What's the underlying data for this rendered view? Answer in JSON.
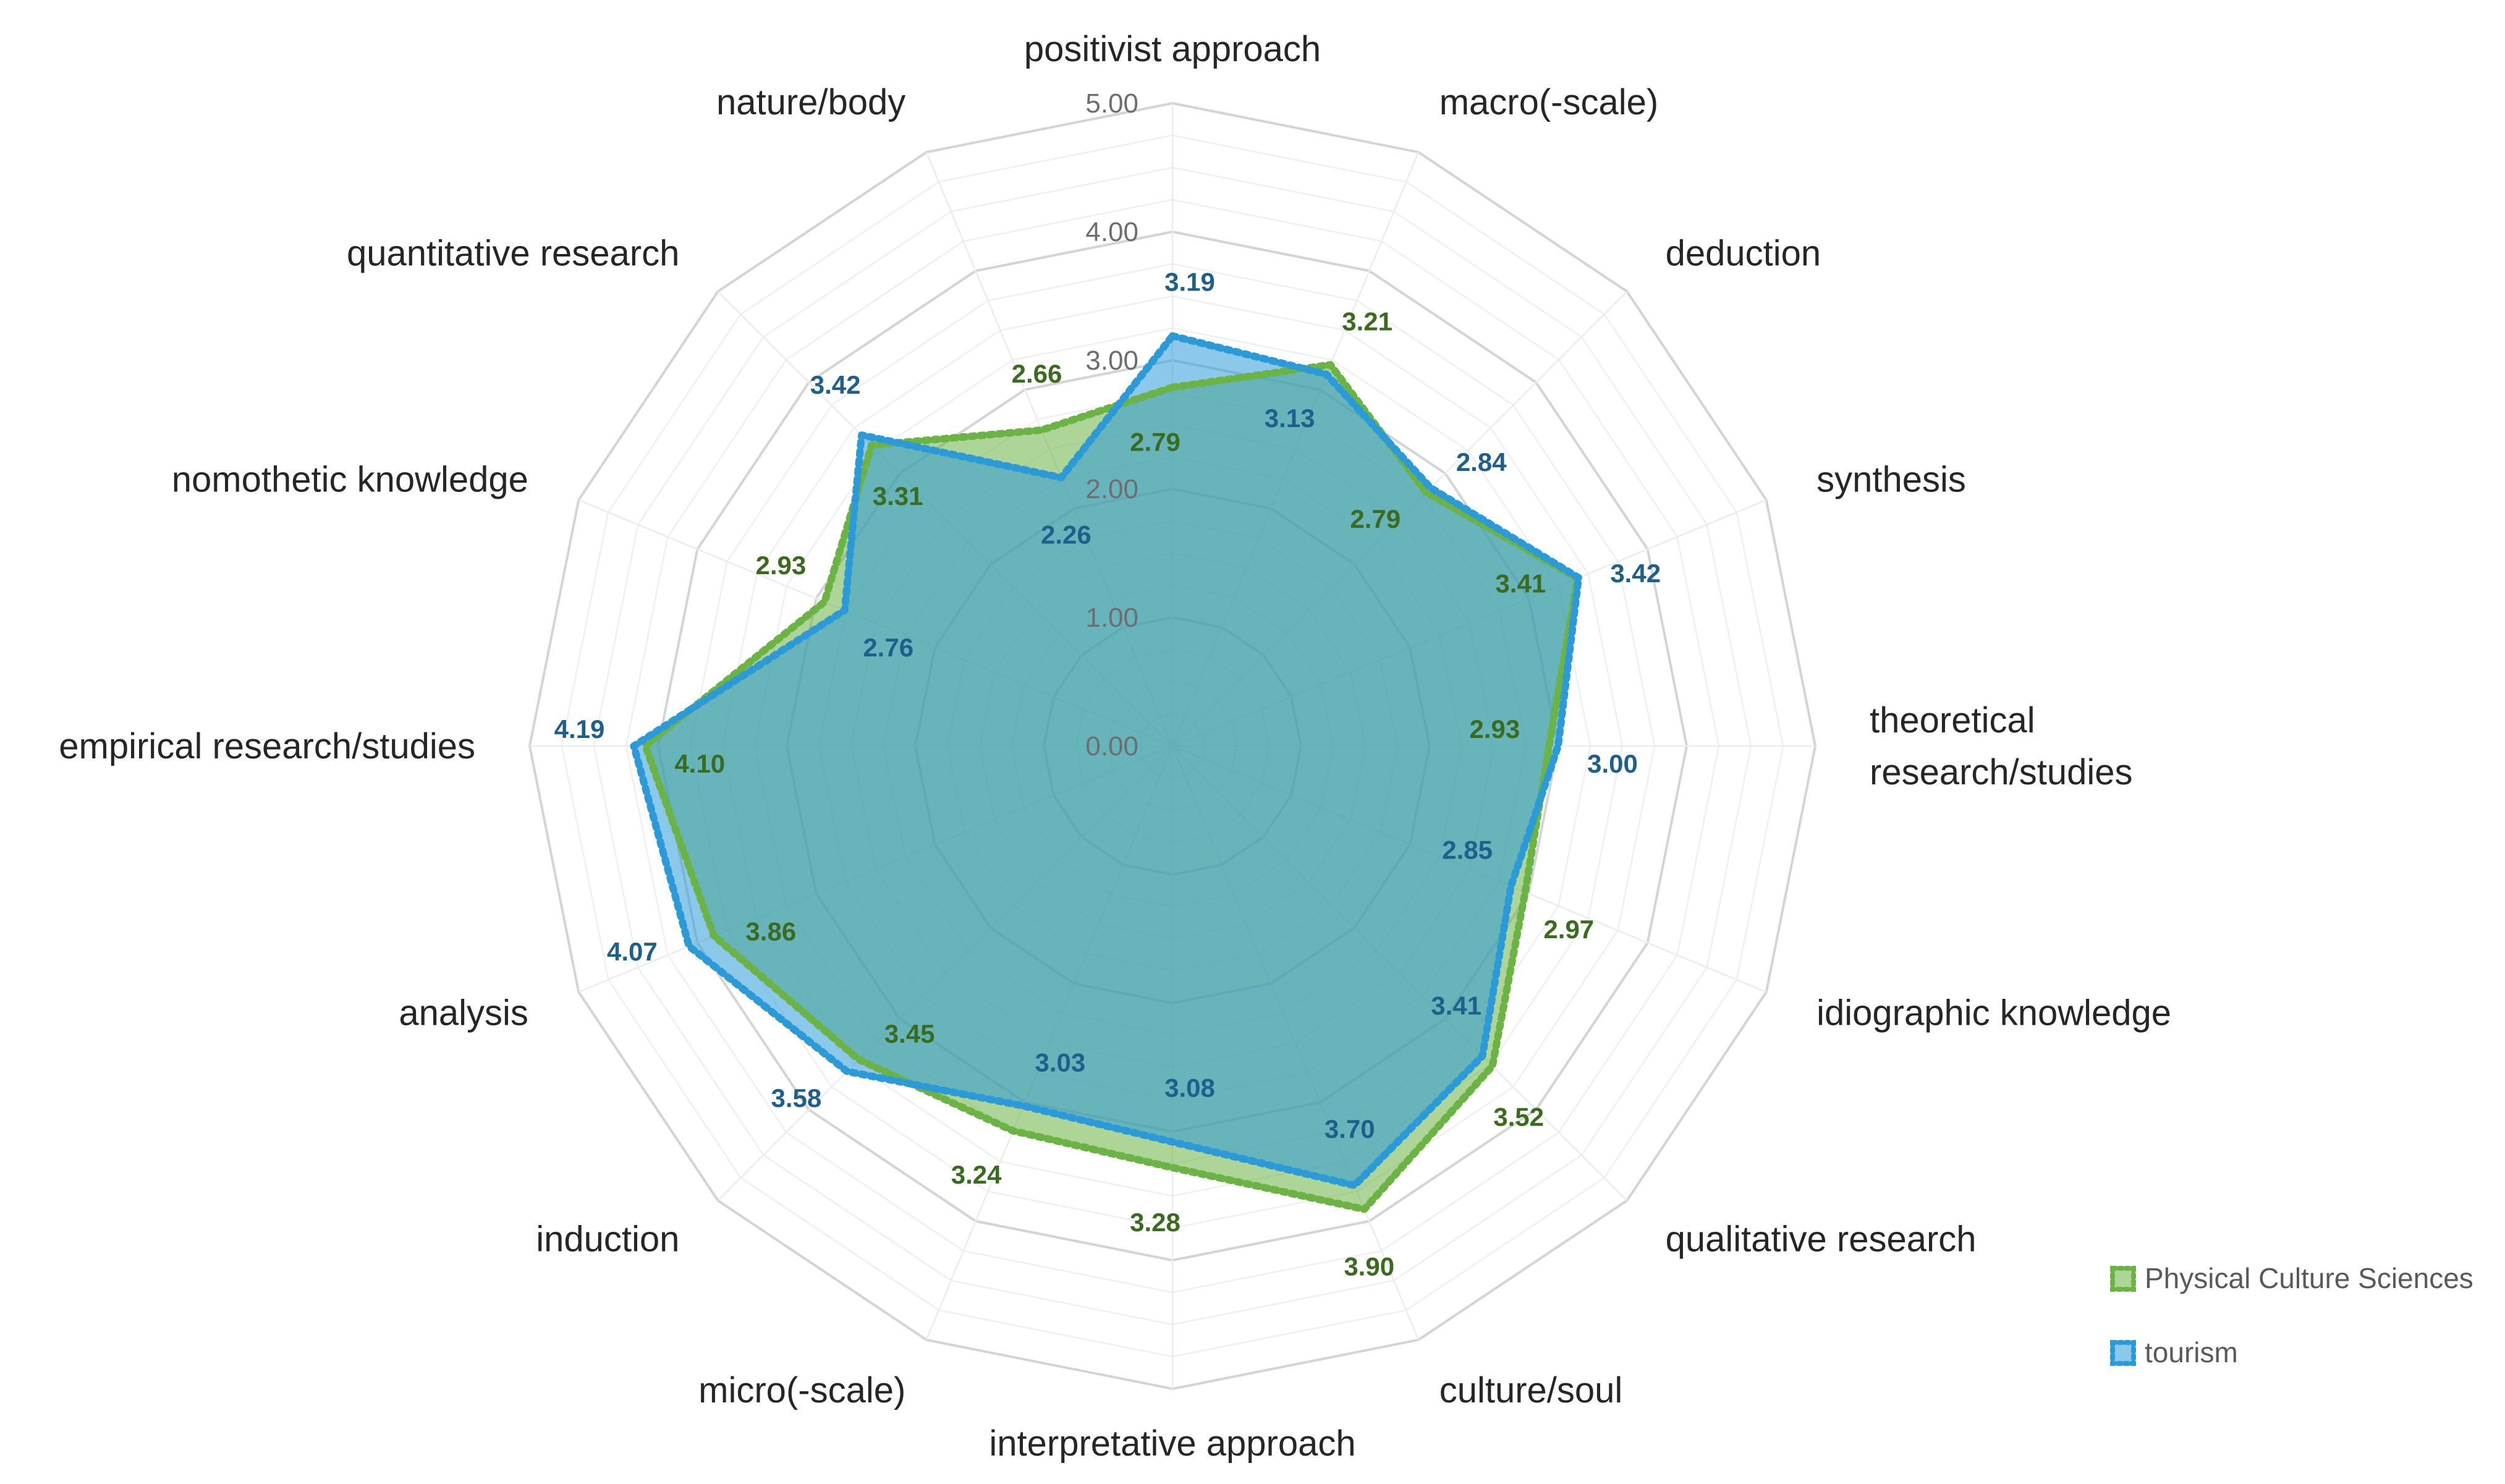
{
  "chart_data": {
    "type": "radar",
    "categories": [
      "positivist approach",
      "macro(-scale)",
      "deduction",
      "synthesis",
      "theoretical research/studies",
      "idiographic knowledge",
      "qualitative research",
      "culture/soul",
      "interpretative approach",
      "micro(-scale)",
      "induction",
      "analysis",
      "empirical research/studies",
      "nomothetic knowledge",
      "quantitative research",
      "nature/body"
    ],
    "category_lines": [
      [
        "positivist approach"
      ],
      [
        "macro(-scale)"
      ],
      [
        "deduction"
      ],
      [
        "synthesis"
      ],
      [
        "theoretical",
        "research/studies"
      ],
      [
        "idiographic knowledge"
      ],
      [
        "qualitative research"
      ],
      [
        "culture/soul"
      ],
      [
        "interpretative approach"
      ],
      [
        "micro(-scale)"
      ],
      [
        "induction"
      ],
      [
        "analysis"
      ],
      [
        "empirical research/studies"
      ],
      [
        "nomothetic knowledge"
      ],
      [
        "quantitative research"
      ],
      [
        "nature/body"
      ]
    ],
    "series": [
      {
        "name": "Physical Culture Sciences",
        "color": "#6ab344",
        "label_color": "#3a6b1f",
        "values": [
          2.79,
          3.21,
          2.79,
          3.41,
          2.93,
          2.97,
          3.52,
          3.9,
          3.28,
          3.24,
          3.45,
          3.86,
          4.1,
          2.93,
          3.31,
          2.66
        ]
      },
      {
        "name": "tourism",
        "color": "#2d9ad8",
        "label_color": "#1f5f8b",
        "values": [
          3.19,
          3.13,
          2.84,
          3.42,
          3.0,
          2.85,
          3.41,
          3.7,
          3.08,
          3.03,
          3.58,
          4.07,
          4.19,
          2.76,
          3.42,
          2.26
        ]
      }
    ],
    "r_axis_ticks": [
      "0.00",
      "1.00",
      "2.00",
      "3.00",
      "4.00",
      "5.00"
    ],
    "r_range": [
      0,
      5
    ],
    "grid": true,
    "legend_position": "bottom-right"
  }
}
